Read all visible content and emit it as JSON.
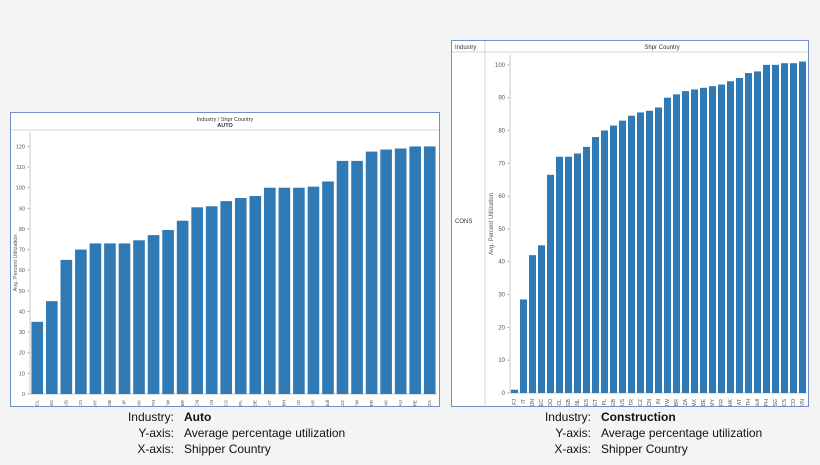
{
  "chart_data": [
    {
      "type": "bar",
      "header_top": "Industry  /  Shpr Country",
      "header_sub": "AUTO",
      "ylabel": "Avg. Percent Utilization",
      "ylim": [
        0,
        127
      ],
      "yticks": [
        0,
        10,
        20,
        30,
        40,
        50,
        60,
        70,
        80,
        90,
        100,
        110,
        120
      ],
      "bar_color": "#2f79b5",
      "categories": [
        "CL",
        "SG",
        "US",
        "CO",
        "MY",
        "GB",
        "JP",
        "MX",
        "TH",
        "TW",
        "BR",
        "CN",
        "IN",
        "CS",
        "PL",
        "DE",
        "AT",
        "BH",
        "ID",
        "AR",
        "Null",
        "ZZ",
        "TW",
        "FR",
        "MX",
        "AU",
        "PE",
        "ZA"
      ],
      "values": [
        35,
        45,
        65,
        70,
        73,
        73,
        73,
        74.5,
        77,
        79.5,
        84,
        90.5,
        91,
        93.5,
        95,
        96,
        100,
        100,
        100,
        100.5,
        103,
        113,
        113,
        117.5,
        118.5,
        119,
        120,
        120
      ]
    },
    {
      "type": "bar",
      "header_left": "Industry",
      "header_center": "Shpr Country",
      "row_label": "CONS",
      "ylabel": "Avg. Percent Utilization",
      "ylim": [
        0,
        103
      ],
      "yticks": [
        0,
        10,
        20,
        30,
        40,
        50,
        60,
        70,
        80,
        90,
        100
      ],
      "bar_color": "#2f79b5",
      "categories": [
        "FJ",
        "IT",
        "DN",
        "EC",
        "DO",
        "CL",
        "GB",
        "NL",
        "ES",
        "GT",
        "PL",
        "GB",
        "US",
        "TR",
        "CZ",
        "CN",
        "IN",
        "TW",
        "BR",
        "ZA",
        "MX",
        "BE",
        "MY",
        "FR",
        "HK",
        "AT",
        "TH",
        "Null",
        "PH",
        "SG",
        "CS",
        "CO",
        "VN"
      ],
      "values": [
        1,
        28.5,
        42,
        45,
        66.5,
        72,
        72,
        73,
        75,
        78,
        80,
        81.5,
        83,
        84.5,
        85.5,
        86,
        87,
        90,
        91,
        92,
        92.5,
        93,
        93.5,
        94,
        95,
        96,
        97.5,
        98,
        100,
        100,
        100.5,
        100.5,
        101
      ]
    }
  ],
  "captions": [
    {
      "rows": [
        {
          "key": "Industry:",
          "value": "Auto",
          "strong": true
        },
        {
          "key": "Y-axis:",
          "value": "Average percentage utilization",
          "strong": false
        },
        {
          "key": "X-axis:",
          "value": "Shipper Country",
          "strong": false
        }
      ]
    },
    {
      "rows": [
        {
          "key": "Industry:",
          "value": "Construction",
          "strong": true
        },
        {
          "key": "Y-axis:",
          "value": "Average percentage utilization",
          "strong": false
        },
        {
          "key": "X-axis:",
          "value": "Shipper Country",
          "strong": false
        }
      ]
    }
  ]
}
